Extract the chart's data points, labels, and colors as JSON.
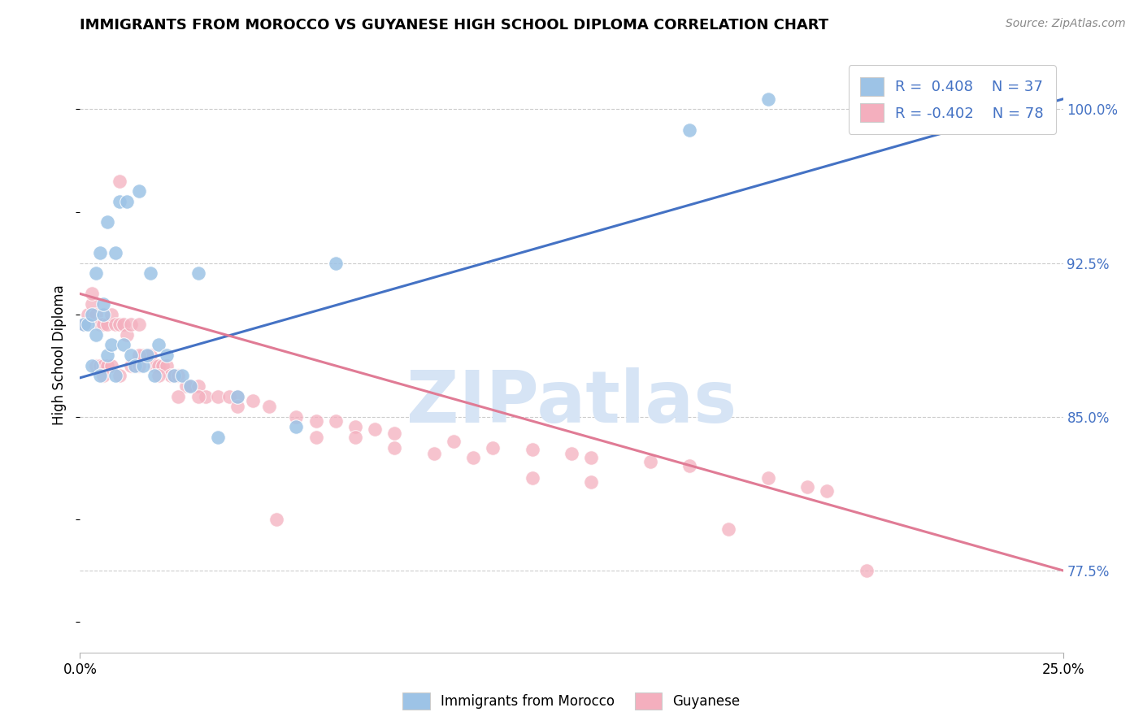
{
  "title": "IMMIGRANTS FROM MOROCCO VS GUYANESE HIGH SCHOOL DIPLOMA CORRELATION CHART",
  "source": "Source: ZipAtlas.com",
  "ylabel": "High School Diploma",
  "right_ytick_labels": [
    "77.5%",
    "85.0%",
    "92.5%",
    "100.0%"
  ],
  "right_ytick_vals": [
    0.775,
    0.85,
    0.925,
    1.0
  ],
  "xlim": [
    0.0,
    0.25
  ],
  "ylim": [
    0.735,
    1.025
  ],
  "color_blue": "#9DC3E6",
  "color_pink": "#F4AFBE",
  "line_blue": "#4472C4",
  "line_pink": "#E07B95",
  "watermark_color": "#D6E4F5",
  "watermark": "ZIPatlas",
  "morocco_x": [
    0.001,
    0.002,
    0.003,
    0.003,
    0.004,
    0.004,
    0.005,
    0.005,
    0.006,
    0.006,
    0.007,
    0.007,
    0.008,
    0.009,
    0.009,
    0.01,
    0.011,
    0.012,
    0.013,
    0.014,
    0.015,
    0.016,
    0.017,
    0.018,
    0.019,
    0.02,
    0.022,
    0.024,
    0.026,
    0.028,
    0.03,
    0.035,
    0.04,
    0.055,
    0.155,
    0.175,
    0.065
  ],
  "morocco_y": [
    0.895,
    0.895,
    0.9,
    0.875,
    0.92,
    0.89,
    0.93,
    0.87,
    0.9,
    0.905,
    0.945,
    0.88,
    0.885,
    0.93,
    0.87,
    0.955,
    0.885,
    0.955,
    0.88,
    0.875,
    0.96,
    0.875,
    0.88,
    0.92,
    0.87,
    0.885,
    0.88,
    0.87,
    0.87,
    0.865,
    0.92,
    0.84,
    0.86,
    0.845,
    0.99,
    1.005,
    0.925
  ],
  "guyanese_x": [
    0.001,
    0.002,
    0.003,
    0.004,
    0.004,
    0.005,
    0.005,
    0.006,
    0.006,
    0.007,
    0.007,
    0.008,
    0.008,
    0.009,
    0.01,
    0.01,
    0.011,
    0.012,
    0.013,
    0.013,
    0.014,
    0.015,
    0.015,
    0.016,
    0.017,
    0.018,
    0.019,
    0.02,
    0.021,
    0.022,
    0.023,
    0.024,
    0.025,
    0.027,
    0.028,
    0.03,
    0.032,
    0.035,
    0.038,
    0.04,
    0.044,
    0.048,
    0.055,
    0.06,
    0.065,
    0.07,
    0.075,
    0.08,
    0.095,
    0.105,
    0.115,
    0.125,
    0.13,
    0.145,
    0.155,
    0.175,
    0.185,
    0.19,
    0.003,
    0.006,
    0.01,
    0.015,
    0.02,
    0.025,
    0.03,
    0.04,
    0.05,
    0.06,
    0.07,
    0.08,
    0.09,
    0.1,
    0.115,
    0.13,
    0.165,
    0.2
  ],
  "guyanese_y": [
    0.895,
    0.9,
    0.905,
    0.9,
    0.875,
    0.895,
    0.875,
    0.895,
    0.875,
    0.895,
    0.875,
    0.9,
    0.875,
    0.895,
    0.895,
    0.87,
    0.895,
    0.89,
    0.895,
    0.875,
    0.875,
    0.895,
    0.875,
    0.88,
    0.88,
    0.88,
    0.875,
    0.875,
    0.875,
    0.875,
    0.87,
    0.87,
    0.87,
    0.865,
    0.865,
    0.865,
    0.86,
    0.86,
    0.86,
    0.86,
    0.858,
    0.855,
    0.85,
    0.848,
    0.848,
    0.845,
    0.844,
    0.842,
    0.838,
    0.835,
    0.834,
    0.832,
    0.83,
    0.828,
    0.826,
    0.82,
    0.816,
    0.814,
    0.91,
    0.87,
    0.965,
    0.88,
    0.87,
    0.86,
    0.86,
    0.855,
    0.8,
    0.84,
    0.84,
    0.835,
    0.832,
    0.83,
    0.82,
    0.818,
    0.795,
    0.775
  ],
  "blue_line_x": [
    0.0,
    0.25
  ],
  "blue_line_y": [
    0.869,
    1.005
  ],
  "pink_line_x": [
    0.0,
    0.25
  ],
  "pink_line_y": [
    0.91,
    0.775
  ]
}
